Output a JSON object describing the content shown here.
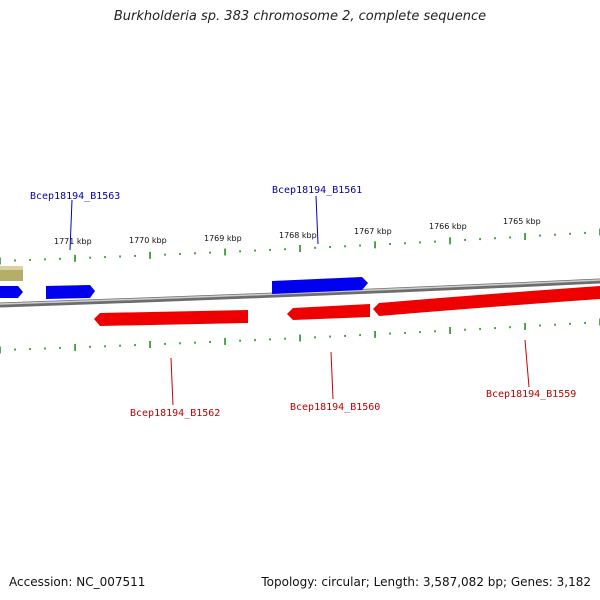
{
  "title": "Burkholderia sp. 383 chromosome 2, complete sequence",
  "footer": {
    "accession": "Accession: NC_007511",
    "topology": "Topology: circular; Length: 3,587,082 bp; Genes: 3,182"
  },
  "colors": {
    "forward_gene": "#0000ee",
    "reverse_gene": "#ee0000",
    "other_feature": "#b5ad6a",
    "tick": "#118811",
    "backbone": "#8a8a8a"
  },
  "scale_labels": [
    "1771 kbp",
    "1770 kbp",
    "1769 kbp",
    "1768 kbp",
    "1767 kbp",
    "1766 kbp",
    "1765 kbp"
  ],
  "genes_top": [
    {
      "label": "Bcep18194_B1563"
    },
    {
      "label": "Bcep18194_B1561"
    }
  ],
  "genes_bottom": [
    {
      "label": "Bcep18194_B1562"
    },
    {
      "label": "Bcep18194_B1560"
    },
    {
      "label": "Bcep18194_B1559"
    }
  ]
}
